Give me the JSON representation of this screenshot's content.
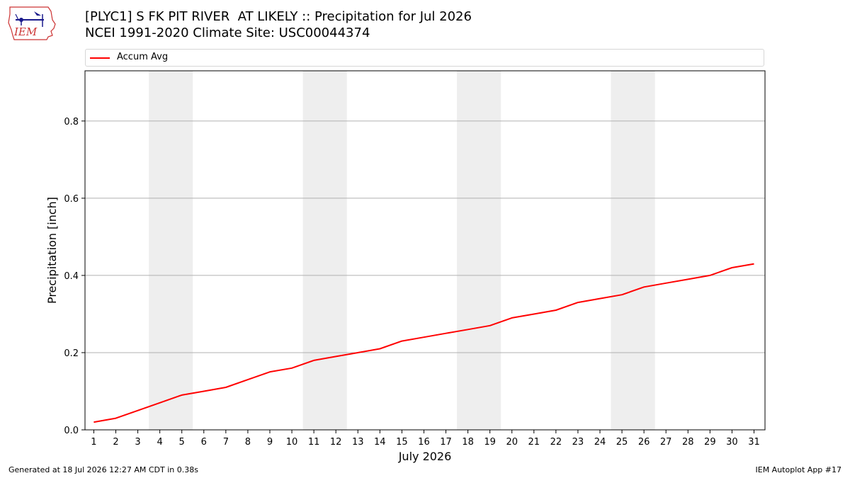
{
  "logo": {
    "text": "IEM"
  },
  "title": {
    "line1": "[PLYC1] S FK PIT RIVER  AT LIKELY :: Precipitation for Jul 2026",
    "line2": "NCEI 1991-2020 Climate Site: USC00044374"
  },
  "footer": {
    "left": "Generated at 18 Jul 2026 12:27 AM CDT in 0.38s",
    "right": "IEM Autoplot App #17"
  },
  "chart_data": {
    "type": "line",
    "xlabel": "July 2026",
    "ylabel": "Precipitation [inch]",
    "x": [
      1,
      2,
      3,
      4,
      5,
      6,
      7,
      8,
      9,
      10,
      11,
      12,
      13,
      14,
      15,
      16,
      17,
      18,
      19,
      20,
      21,
      22,
      23,
      24,
      25,
      26,
      27,
      28,
      29,
      30,
      31
    ],
    "series": [
      {
        "name": "Accum Avg",
        "color": "#ff0000",
        "values": [
          0.02,
          0.03,
          0.05,
          0.07,
          0.09,
          0.1,
          0.11,
          0.13,
          0.15,
          0.16,
          0.18,
          0.19,
          0.2,
          0.21,
          0.23,
          0.24,
          0.25,
          0.26,
          0.27,
          0.29,
          0.3,
          0.31,
          0.33,
          0.34,
          0.35,
          0.37,
          0.38,
          0.39,
          0.4,
          0.42,
          0.43
        ]
      }
    ],
    "xlim": [
      0.6,
      31.5
    ],
    "ylim": [
      0,
      0.93
    ],
    "yticks": [
      0.0,
      0.2,
      0.4,
      0.6,
      0.8
    ],
    "ytick_labels": [
      "0.0",
      "0.2",
      "0.4",
      "0.6",
      "0.8"
    ],
    "weekend_shading": [
      [
        3.5,
        5.5
      ],
      [
        10.5,
        12.5
      ],
      [
        17.5,
        19.5
      ],
      [
        24.5,
        26.5
      ]
    ],
    "grid": "y",
    "legend_position": "top"
  }
}
